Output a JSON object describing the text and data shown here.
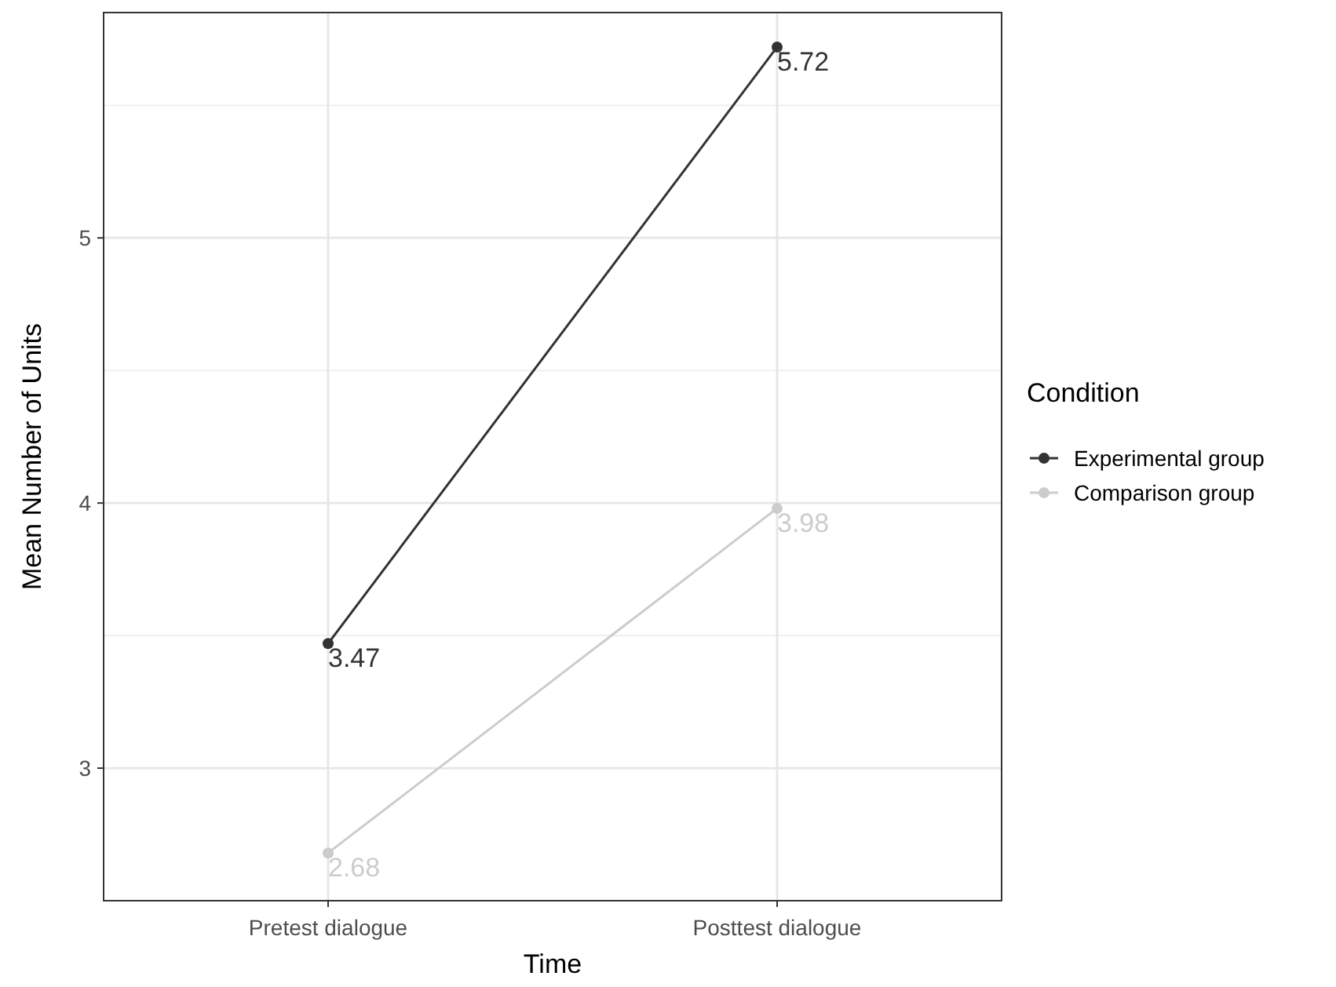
{
  "chart_data": {
    "type": "line",
    "xlabel": "Time",
    "ylabel": "Mean Number of Units",
    "legend_title": "Condition",
    "categories": [
      "Pretest dialogue",
      "Posttest dialogue"
    ],
    "series": [
      {
        "name": "Experimental group",
        "color": "#333333",
        "values": [
          3.47,
          5.72
        ]
      },
      {
        "name": "Comparison group",
        "color": "#cccccc",
        "values": [
          2.68,
          3.98
        ]
      }
    ],
    "ylim": [
      2.5,
      5.85
    ],
    "yticks": [
      3,
      4,
      5
    ],
    "grid": true,
    "legend": "right",
    "marker": "circle",
    "data_labels": true
  }
}
